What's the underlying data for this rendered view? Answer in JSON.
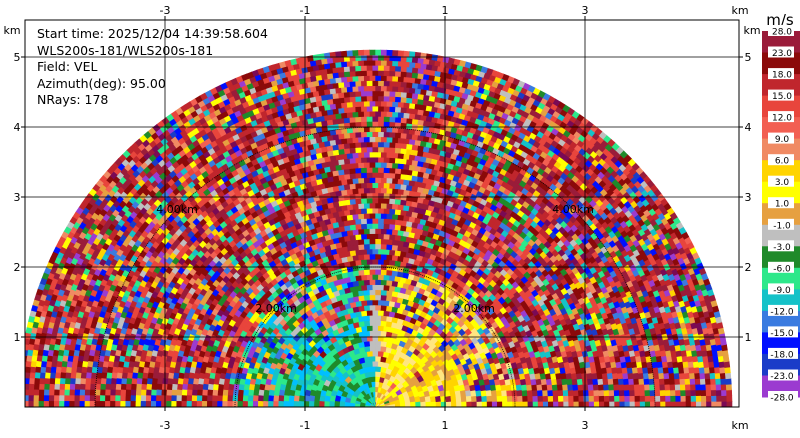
{
  "chart_data": {
    "type": "heatmap",
    "plot": "radar PPI sector, Doppler radial velocity",
    "info": {
      "start_time": "Start time: 2025/12/04 14:39:58.604",
      "instrument": "WLS200s-181/WLS200s-181",
      "field": "Field: VEL",
      "azimuth": "Azimuth(deg): 95.00",
      "nrays": "NRays: 178"
    },
    "x_axis": {
      "unit": "km",
      "range": [
        -5.4,
        5.4
      ],
      "ticks": [
        "-3",
        "-1",
        "1",
        "3"
      ],
      "tick_values": [
        -3,
        -1,
        1,
        3
      ]
    },
    "y_axis": {
      "unit": "km",
      "range": [
        0,
        5.5
      ],
      "ticks": [
        "1",
        "2",
        "3",
        "4",
        "5"
      ],
      "tick_values": [
        1,
        2,
        3,
        4,
        5
      ]
    },
    "max_range_km": 5.1,
    "range_rings": [
      {
        "radius_km": 2.0,
        "label": "2.00km"
      },
      {
        "radius_km": 4.0,
        "label": "4.00km"
      }
    ],
    "colorbar": {
      "unit": "m/s",
      "labels": [
        "28.0",
        "23.0",
        "18.0",
        "15.0",
        "12.0",
        "9.0",
        "6.0",
        "3.0",
        "1.0",
        "-1.0",
        "-3.0",
        "-6.0",
        "-9.0",
        "-12.0",
        "-15.0",
        "-18.0",
        "-23.0",
        "-28.0"
      ],
      "colors": [
        "#9a1c3a",
        "#8b0a0a",
        "#c0262d",
        "#e8453c",
        "#f25f52",
        "#f08a63",
        "#ffd400",
        "#ffff00",
        "#e6a040",
        "#bfbfbf",
        "#1f8a2a",
        "#2de88a",
        "#15c2c8",
        "#3a7be0",
        "#0010ff",
        "#1a3cc8",
        "#9b3bd0",
        "#7a0a55"
      ]
    },
    "near_field": {
      "negative_side_colors": [
        "#15c2c8",
        "#2de88a",
        "#00bfff",
        "#1f8a2a"
      ],
      "positive_side_colors": [
        "#ffd400",
        "#ffff00",
        "#e6a040",
        "#ffe680"
      ]
    }
  }
}
